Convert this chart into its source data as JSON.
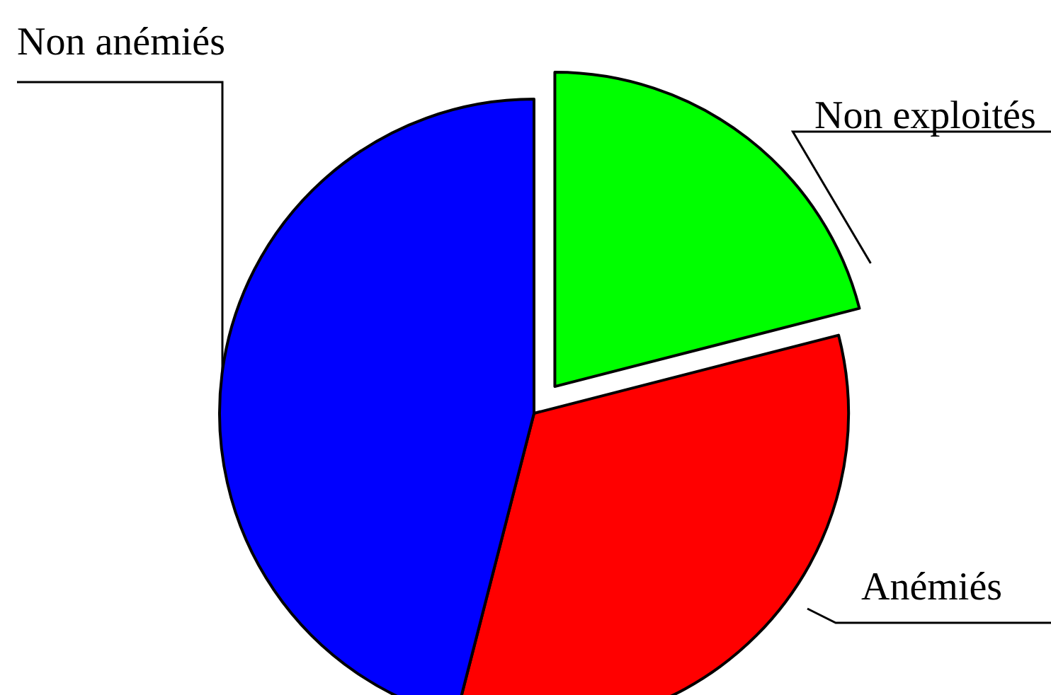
{
  "chart_data": {
    "type": "pie",
    "categories": [
      "Non exploités",
      "Anémiés",
      "Non anémiés"
    ],
    "values": [
      21,
      33,
      46
    ],
    "colors": [
      "#00ff00",
      "#ff0000",
      "#0000ff"
    ],
    "legend": false
  }
}
